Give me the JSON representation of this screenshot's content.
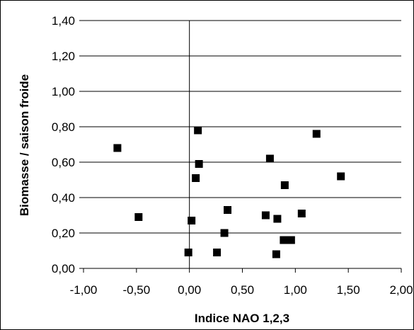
{
  "chart_data": {
    "type": "scatter",
    "xlabel": "Indice NAO 1,2,3",
    "ylabel": "Biomasse / saison froide",
    "xlim": [
      -1.0,
      2.0
    ],
    "ylim": [
      0.0,
      1.4
    ],
    "x_ticks": [
      "-1,00",
      "-0,50",
      "0,00",
      "0,50",
      "1,00",
      "1,50",
      "2,00"
    ],
    "y_ticks": [
      "0,00",
      "0,20",
      "0,40",
      "0,60",
      "0,80",
      "1,00",
      "1,20",
      "1,40"
    ],
    "grid": "horizontal",
    "marker": "square",
    "marker_color": "#000000",
    "points": [
      {
        "x": -0.68,
        "y": 0.68
      },
      {
        "x": -0.48,
        "y": 0.29
      },
      {
        "x": -0.01,
        "y": 0.09
      },
      {
        "x": 0.02,
        "y": 0.27
      },
      {
        "x": 0.06,
        "y": 0.51
      },
      {
        "x": 0.08,
        "y": 0.78
      },
      {
        "x": 0.09,
        "y": 0.59
      },
      {
        "x": 0.26,
        "y": 0.09
      },
      {
        "x": 0.33,
        "y": 0.2
      },
      {
        "x": 0.36,
        "y": 0.33
      },
      {
        "x": 0.72,
        "y": 0.3
      },
      {
        "x": 0.76,
        "y": 0.62
      },
      {
        "x": 0.82,
        "y": 0.08
      },
      {
        "x": 0.83,
        "y": 0.28
      },
      {
        "x": 0.89,
        "y": 0.16
      },
      {
        "x": 0.9,
        "y": 0.47
      },
      {
        "x": 0.96,
        "y": 0.16
      },
      {
        "x": 1.06,
        "y": 0.31
      },
      {
        "x": 1.2,
        "y": 0.76
      },
      {
        "x": 1.43,
        "y": 0.52
      }
    ]
  }
}
